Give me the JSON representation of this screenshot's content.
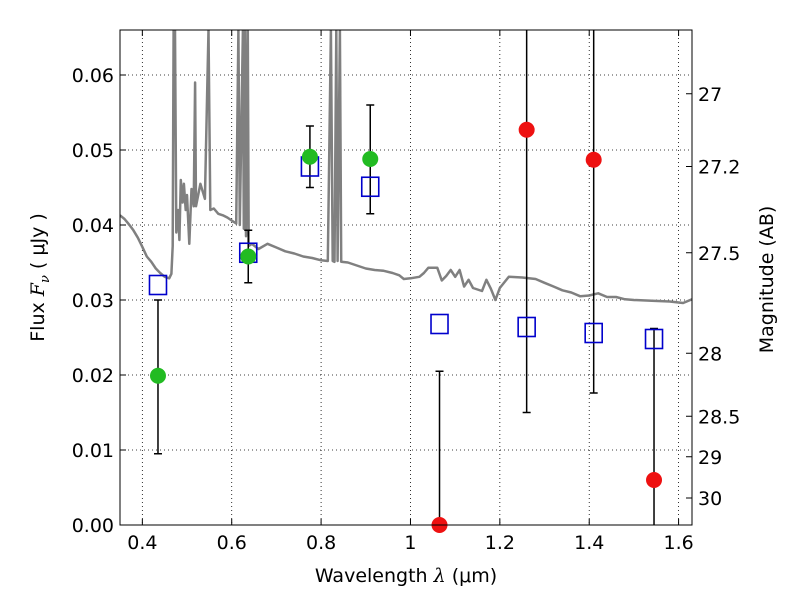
{
  "chart_data": {
    "type": "scatter",
    "xlabel": "Wavelength",
    "xlabel_symbol": "λ",
    "xlabel_unit": "(μm)",
    "ylabel": "Flux",
    "ylabel_symbol": "F",
    "ylabel_subscript": "ν",
    "ylabel_unit": "( μJy )",
    "ylabel_right": "Magnitude (AB)",
    "xlim": [
      0.35,
      1.63
    ],
    "ylim": [
      0.0,
      0.066
    ],
    "grid": true,
    "x_ticks": [
      0.4,
      0.6,
      0.8,
      1.0,
      1.2,
      1.4,
      1.6
    ],
    "x_tick_labels": [
      "0.4",
      "0.6",
      "0.8",
      "1",
      "1.2",
      "1.4",
      "1.6"
    ],
    "y_ticks": [
      0.0,
      0.01,
      0.02,
      0.03,
      0.04,
      0.05,
      0.06
    ],
    "y_tick_labels": [
      "0.00",
      "0.01",
      "0.02",
      "0.03",
      "0.04",
      "0.05",
      "0.06"
    ],
    "right_ticks": [
      {
        "label": "27",
        "flux": 0.0575
      },
      {
        "label": "27.2",
        "flux": 0.0478
      },
      {
        "label": "27.5",
        "flux": 0.0363
      },
      {
        "label": "28",
        "flux": 0.0229
      },
      {
        "label": "28.5",
        "flux": 0.0145
      },
      {
        "label": "29",
        "flux": 0.0091
      },
      {
        "label": "30",
        "flux": 0.0036
      }
    ],
    "colors": {
      "green": "#22bb22",
      "red": "#ee1111",
      "blue_square": "#0000cc",
      "model": "#808080",
      "errorbar": "#000000"
    },
    "series": [
      {
        "marker": "circle",
        "color": "green",
        "points": [
          {
            "x": 0.435,
            "y": 0.0199,
            "yerr_low": 0.0095,
            "yerr_high": 0.03
          },
          {
            "x": 0.637,
            "y": 0.0358,
            "yerr_low": 0.0323,
            "yerr_high": 0.0393
          },
          {
            "x": 0.775,
            "y": 0.0491,
            "yerr_low": 0.045,
            "yerr_high": 0.0532
          },
          {
            "x": 0.91,
            "y": 0.0488,
            "yerr_low": 0.0415,
            "yerr_high": 0.056
          }
        ]
      },
      {
        "marker": "circle",
        "color": "red",
        "points": [
          {
            "x": 1.065,
            "y": 0.0,
            "yerr_low": 0.0,
            "yerr_high": 0.0205
          },
          {
            "x": 1.26,
            "y": 0.0527,
            "yerr_low": 0.015,
            "yerr_high": 0.066
          },
          {
            "x": 1.41,
            "y": 0.0487,
            "yerr_low": 0.0176,
            "yerr_high": 0.066
          },
          {
            "x": 1.545,
            "y": 0.006,
            "yerr_low": 0.0,
            "yerr_high": 0.0262
          }
        ]
      },
      {
        "marker": "square",
        "color": "blue_square",
        "points": [
          {
            "x": 0.435,
            "y": 0.032
          },
          {
            "x": 0.637,
            "y": 0.0363
          },
          {
            "x": 0.775,
            "y": 0.0478
          },
          {
            "x": 0.91,
            "y": 0.0451
          },
          {
            "x": 1.065,
            "y": 0.0268
          },
          {
            "x": 1.26,
            "y": 0.0264
          },
          {
            "x": 1.41,
            "y": 0.0256
          },
          {
            "x": 1.545,
            "y": 0.0248
          }
        ]
      }
    ],
    "model_spectrum": [
      [
        0.35,
        0.0413
      ],
      [
        0.36,
        0.0408
      ],
      [
        0.37,
        0.0401
      ],
      [
        0.38,
        0.0393
      ],
      [
        0.39,
        0.0383
      ],
      [
        0.4,
        0.0371
      ],
      [
        0.41,
        0.0358
      ],
      [
        0.42,
        0.0351
      ],
      [
        0.43,
        0.0342
      ],
      [
        0.44,
        0.0336
      ],
      [
        0.45,
        0.0331
      ],
      [
        0.455,
        0.033
      ],
      [
        0.46,
        0.0329
      ],
      [
        0.465,
        0.0335
      ],
      [
        0.468,
        0.0372
      ],
      [
        0.47,
        0.066
      ],
      [
        0.473,
        0.066
      ],
      [
        0.476,
        0.039
      ],
      [
        0.48,
        0.042
      ],
      [
        0.483,
        0.038
      ],
      [
        0.486,
        0.046
      ],
      [
        0.49,
        0.043
      ],
      [
        0.493,
        0.0455
      ],
      [
        0.497,
        0.042
      ],
      [
        0.5,
        0.044
      ],
      [
        0.505,
        0.0375
      ],
      [
        0.51,
        0.0448
      ],
      [
        0.515,
        0.0425
      ],
      [
        0.518,
        0.059
      ],
      [
        0.52,
        0.0425
      ],
      [
        0.53,
        0.0455
      ],
      [
        0.54,
        0.0435
      ],
      [
        0.548,
        0.066
      ],
      [
        0.552,
        0.042
      ],
      [
        0.56,
        0.0422
      ],
      [
        0.57,
        0.0415
      ],
      [
        0.58,
        0.0413
      ],
      [
        0.59,
        0.041
      ],
      [
        0.6,
        0.0406
      ],
      [
        0.61,
        0.0402
      ],
      [
        0.615,
        0.066
      ],
      [
        0.618,
        0.04
      ],
      [
        0.625,
        0.066
      ],
      [
        0.627,
        0.0395
      ],
      [
        0.63,
        0.066
      ],
      [
        0.632,
        0.0385
      ],
      [
        0.636,
        0.066
      ],
      [
        0.638,
        0.0372
      ],
      [
        0.645,
        0.0375
      ],
      [
        0.66,
        0.0368
      ],
      [
        0.68,
        0.0375
      ],
      [
        0.7,
        0.037
      ],
      [
        0.72,
        0.0365
      ],
      [
        0.74,
        0.0362
      ],
      [
        0.76,
        0.0358
      ],
      [
        0.78,
        0.0356
      ],
      [
        0.8,
        0.0353
      ],
      [
        0.815,
        0.0352
      ],
      [
        0.822,
        0.066
      ],
      [
        0.826,
        0.0352
      ],
      [
        0.83,
        0.0351
      ],
      [
        0.834,
        0.066
      ],
      [
        0.837,
        0.0352
      ],
      [
        0.842,
        0.066
      ],
      [
        0.845,
        0.0351
      ],
      [
        0.86,
        0.035
      ],
      [
        0.88,
        0.0346
      ],
      [
        0.9,
        0.0342
      ],
      [
        0.92,
        0.034
      ],
      [
        0.94,
        0.0339
      ],
      [
        0.96,
        0.0336
      ],
      [
        0.975,
        0.0333
      ],
      [
        0.985,
        0.0328
      ],
      [
        1.0,
        0.0329
      ],
      [
        1.02,
        0.0331
      ],
      [
        1.03,
        0.0336
      ],
      [
        1.04,
        0.0343
      ],
      [
        1.06,
        0.0343
      ],
      [
        1.07,
        0.0326
      ],
      [
        1.08,
        0.0332
      ],
      [
        1.09,
        0.034
      ],
      [
        1.1,
        0.0331
      ],
      [
        1.11,
        0.034
      ],
      [
        1.12,
        0.0318
      ],
      [
        1.13,
        0.0327
      ],
      [
        1.14,
        0.0316
      ],
      [
        1.16,
        0.0312
      ],
      [
        1.17,
        0.0327
      ],
      [
        1.18,
        0.0315
      ],
      [
        1.19,
        0.03
      ],
      [
        1.2,
        0.0316
      ],
      [
        1.22,
        0.0331
      ],
      [
        1.25,
        0.033
      ],
      [
        1.28,
        0.0328
      ],
      [
        1.3,
        0.0323
      ],
      [
        1.32,
        0.0318
      ],
      [
        1.34,
        0.0313
      ],
      [
        1.36,
        0.031
      ],
      [
        1.38,
        0.0305
      ],
      [
        1.4,
        0.0306
      ],
      [
        1.42,
        0.0309
      ],
      [
        1.44,
        0.0304
      ],
      [
        1.46,
        0.0304
      ],
      [
        1.48,
        0.0301
      ],
      [
        1.5,
        0.03
      ],
      [
        1.54,
        0.0299
      ],
      [
        1.58,
        0.0298
      ],
      [
        1.61,
        0.0296
      ],
      [
        1.63,
        0.0301
      ]
    ]
  }
}
